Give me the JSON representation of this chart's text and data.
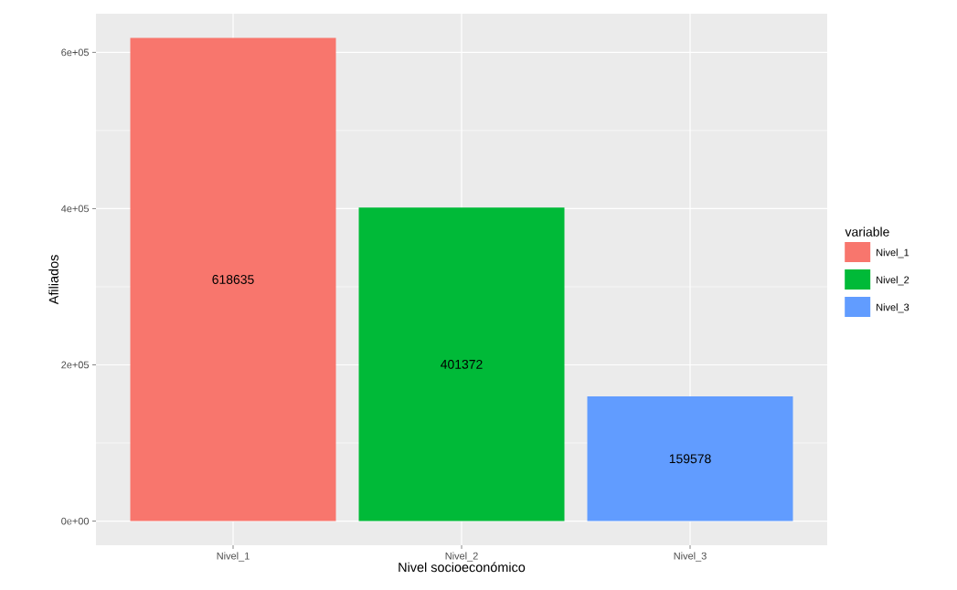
{
  "chart_data": {
    "type": "bar",
    "xlabel": "Nivel socioeconómico",
    "ylabel": "Afiliados",
    "legend_title": "variable",
    "categories": [
      "Nivel_1",
      "Nivel_2",
      "Nivel_3"
    ],
    "series": [
      {
        "name": "Nivel_1",
        "color": "#f8766d",
        "values": [
          618635,
          null,
          null
        ]
      },
      {
        "name": "Nivel_2",
        "color": "#00ba38",
        "values": [
          null,
          401372,
          null
        ]
      },
      {
        "name": "Nivel_3",
        "color": "#619cff",
        "values": [
          null,
          null,
          159578
        ]
      }
    ],
    "ylim": [
      -30932,
      649567
    ],
    "yticks": [
      {
        "value": 0,
        "label": "0e+00"
      },
      {
        "value": 200000,
        "label": "2e+05"
      },
      {
        "value": 400000,
        "label": "4e+05"
      },
      {
        "value": 600000,
        "label": "6e+05"
      }
    ],
    "data_labels": true,
    "grid": true,
    "legend": "right"
  }
}
